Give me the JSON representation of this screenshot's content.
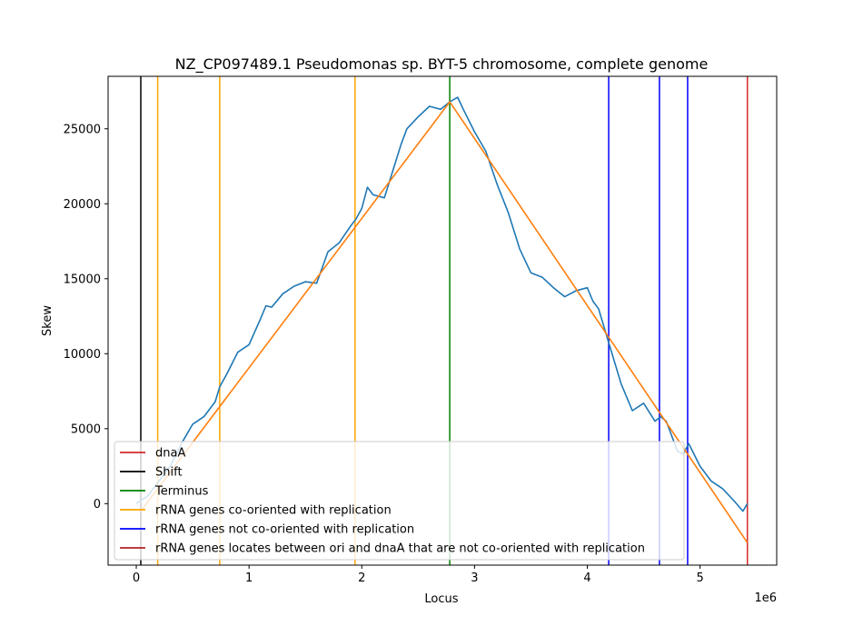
{
  "chart_data": {
    "type": "line",
    "title": "NZ_CP097489.1 Pseudomonas sp. BYT-5 chromosome, complete genome",
    "xlabel": "Locus",
    "ylabel": "Skew",
    "x_offset_label": "1e6",
    "xlim": [
      -250000,
      5680000
    ],
    "ylim": [
      -4100,
      28500
    ],
    "x_ticks": [
      0,
      1000000,
      2000000,
      3000000,
      4000000,
      5000000
    ],
    "x_tick_labels": [
      "0",
      "1",
      "2",
      "3",
      "4",
      "5"
    ],
    "y_ticks": [
      0,
      5000,
      10000,
      15000,
      20000,
      25000
    ],
    "y_tick_labels": [
      "0",
      "5000",
      "10000",
      "15000",
      "20000",
      "25000"
    ],
    "grid": false,
    "legend_position": "lower-left",
    "series": [
      {
        "role": "skew",
        "color": "#1f77b4",
        "x": [
          0,
          100000,
          200000,
          300000,
          400000,
          500000,
          600000,
          700000,
          740000,
          800000,
          900000,
          1000000,
          1100000,
          1150000,
          1200000,
          1300000,
          1400000,
          1500000,
          1600000,
          1700000,
          1800000,
          1900000,
          1950000,
          2000000,
          2050000,
          2100000,
          2200000,
          2300000,
          2350000,
          2400000,
          2500000,
          2600000,
          2700000,
          2780000,
          2850000,
          2900000,
          3000000,
          3100000,
          3200000,
          3300000,
          3400000,
          3500000,
          3600000,
          3700000,
          3800000,
          3900000,
          4000000,
          4050000,
          4100000,
          4200000,
          4300000,
          4400000,
          4500000,
          4600000,
          4650000,
          4700000,
          4750000,
          4800000,
          4850000,
          4900000,
          5000000,
          5100000,
          5200000,
          5300000,
          5380000,
          5420000
        ],
        "y": [
          0,
          500,
          1500,
          2500,
          4000,
          5300,
          5800,
          6800,
          7800,
          8600,
          10100,
          10600,
          12300,
          13200,
          13100,
          14000,
          14500,
          14800,
          14700,
          16800,
          17400,
          18500,
          19000,
          19700,
          21100,
          20600,
          20400,
          22800,
          24000,
          25000,
          25800,
          26500,
          26300,
          26800,
          27100,
          26300,
          24800,
          23500,
          21300,
          19400,
          17000,
          15400,
          15100,
          14400,
          13800,
          14200,
          14400,
          13500,
          13000,
          10500,
          8000,
          6200,
          6700,
          5500,
          5800,
          5500,
          4500,
          3500,
          3300,
          4000,
          2500,
          1500,
          1000,
          200,
          -500,
          0
        ]
      },
      {
        "role": "fit",
        "color": "#ff7f0e",
        "x": [
          40000,
          2780000,
          5420000
        ],
        "y": [
          -500,
          26800,
          -2600
        ]
      }
    ],
    "vlines": [
      {
        "role": "dnaA",
        "x": 5420000,
        "color": "#d62728"
      },
      {
        "role": "shift",
        "x": 40000,
        "color": "#000000"
      },
      {
        "role": "terminus",
        "x": 2780000,
        "color": "#008000"
      },
      {
        "role": "rrna-co",
        "x": 190000,
        "color": "#ffa500"
      },
      {
        "role": "rrna-co",
        "x": 740000,
        "color": "#ffa500"
      },
      {
        "role": "rrna-co",
        "x": 1940000,
        "color": "#ffa500"
      },
      {
        "role": "rrna-not-co",
        "x": 4190000,
        "color": "#0000ff"
      },
      {
        "role": "rrna-not-co",
        "x": 4640000,
        "color": "#0000ff"
      },
      {
        "role": "rrna-not-co",
        "x": 4890000,
        "color": "#0000ff"
      }
    ],
    "legend": [
      {
        "label": "dnaA",
        "color": "#d62728"
      },
      {
        "label": "Shift",
        "color": "#000000"
      },
      {
        "label": "Terminus",
        "color": "#008000"
      },
      {
        "label": "rRNA genes co-oriented with replication",
        "color": "#ffa500"
      },
      {
        "label": "rRNA genes not co-oriented with replication",
        "color": "#0000ff"
      },
      {
        "label": "rRNA genes locates between ori and dnaA that are not co-oriented with replication",
        "color": "#b22222"
      }
    ]
  }
}
